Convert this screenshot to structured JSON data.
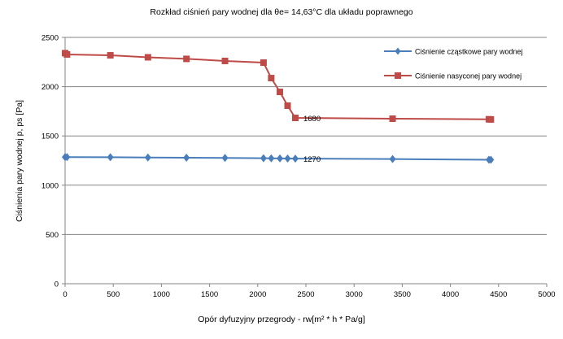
{
  "chart_data": {
    "type": "line",
    "title": "Rozkład ciśnień pary wodnej  dla θe= 14,63°C dla układu poprawnego",
    "xlabel": "Opór dyfuzyjny przegrody - rw[m² * h * Pa/g]",
    "ylabel": "Ciśnienia pary wodnej p, ps [Pa]",
    "xlim": [
      0,
      5000
    ],
    "ylim": [
      0,
      2500
    ],
    "xticks": [
      "0",
      "500",
      "1000",
      "1500",
      "2000",
      "2500",
      "3000",
      "3500",
      "4000",
      "4500",
      "5000"
    ],
    "yticks": [
      "0",
      "500",
      "1000",
      "1500",
      "2000",
      "2500"
    ],
    "grid": "horizontal",
    "legend_position": "top-right",
    "series": [
      {
        "name": "Ciśnienie cząstkowe pary wodnej",
        "color": "#4a7ebb",
        "marker": "diamond",
        "x": [
          0,
          20,
          470,
          860,
          1260,
          1660,
          2060,
          2140,
          2230,
          2310,
          2390,
          3400,
          4400,
          4420
        ],
        "y": [
          1285,
          1285,
          1284,
          1281,
          1279,
          1277,
          1274,
          1273,
          1272,
          1271,
          1270,
          1265,
          1258,
          1258
        ],
        "data_label": {
          "text": "1270",
          "index": 10
        }
      },
      {
        "name": "Ciśnienie nasyconej pary wodnej",
        "color": "#be4b48",
        "marker": "square",
        "x": [
          0,
          20,
          470,
          860,
          1260,
          1660,
          2060,
          2140,
          2230,
          2310,
          2390,
          3400,
          4400,
          4420
        ],
        "y": [
          2340,
          2327,
          2318,
          2298,
          2282,
          2261,
          2244,
          2087,
          1947,
          1807,
          1683,
          1675,
          1669,
          1667
        ],
        "data_label": {
          "text": "1680",
          "index": 10
        }
      }
    ]
  }
}
